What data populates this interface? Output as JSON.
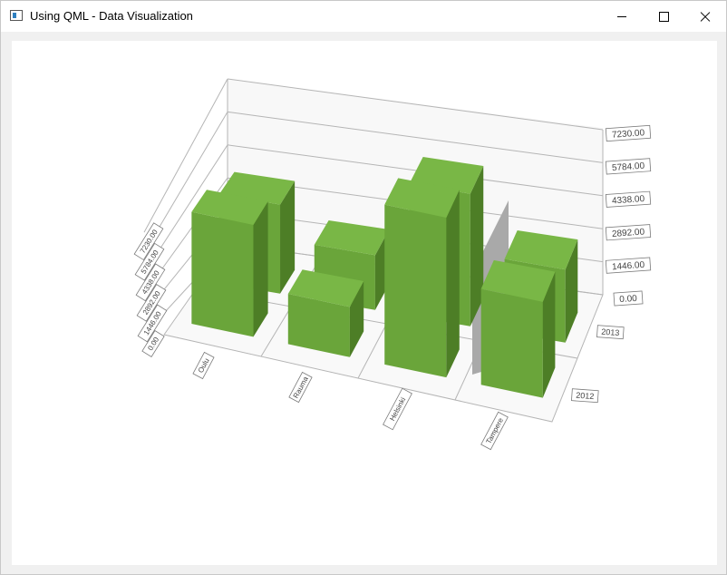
{
  "window": {
    "title": "Using QML - Data Visualization"
  },
  "chart_data": {
    "type": "bar3d",
    "rows": [
      "2012",
      "2013"
    ],
    "columns": [
      "Oulu",
      "Rauma",
      "Helsinki",
      "Tampere"
    ],
    "series": [
      {
        "name": "2012",
        "values": [
          4900,
          2200,
          7000,
          4200
        ]
      },
      {
        "name": "2013",
        "values": [
          3900,
          2400,
          5800,
          3200
        ]
      }
    ],
    "value_axis": {
      "ticks": [
        "0.00",
        "1446.00",
        "2892.00",
        "4338.00",
        "5784.00",
        "7230.00"
      ],
      "range": [
        0,
        7230
      ]
    },
    "bar_color": "#6aa53a"
  }
}
